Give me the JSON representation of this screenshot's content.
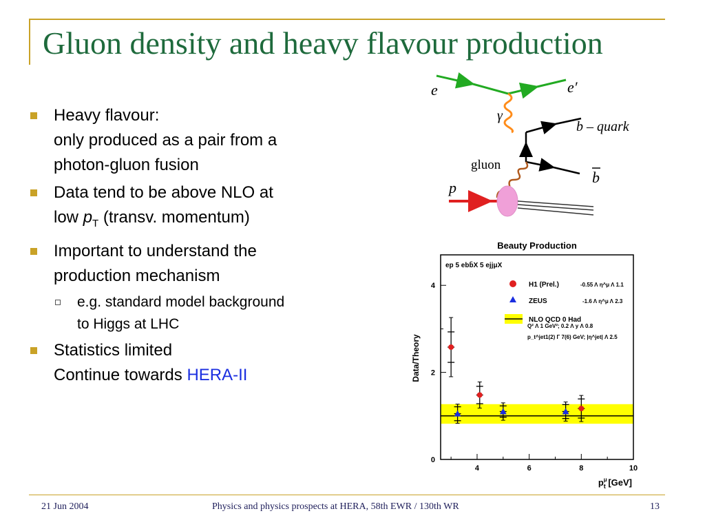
{
  "slide": {
    "title": "Gluon density and heavy flavour production",
    "bullets": {
      "b1_line1": "Heavy flavour:",
      "b1_line2": "only produced as a pair from a",
      "b1_line3": "photon-gluon fusion",
      "b2_line1": "Data tend to be above NLO at",
      "b2_line2_pre": "low ",
      "b2_p": "p",
      "b2_sub": "T",
      "b2_line2_post": " (transv. momentum)",
      "b3_line1": "Important to understand the",
      "b3_line2": "production mechanism",
      "b3_sub_line1": "e.g. standard model background",
      "b3_sub_line2": "to Higgs at LHC",
      "b4_line1": "Statistics limited",
      "b4_line2_pre": "Continue towards ",
      "b4_highlight": "HERA-II"
    },
    "diagram": {
      "e": "e",
      "e_prime": "e′",
      "gamma": "γ",
      "b_quark": "b – quark",
      "gluon": "gluon",
      "b_bar": "b",
      "p": "p"
    },
    "footer": {
      "date": "21 Jun 2004",
      "center": "Physics and physics prospects at HERA, 58th EWR / 130th WR",
      "page": "13"
    }
  },
  "chart_data": {
    "type": "scatter",
    "title": "Beauty Production",
    "process": "ep 5 ebb̄X 5 ejjμX",
    "xlabel": "p",
    "xlabel_sup": "μ",
    "xlabel_sub": "t",
    "xlabel_unit": " [GeV]",
    "ylabel": "Data/Theory",
    "xlim": [
      2.6,
      10
    ],
    "ylim": [
      0,
      4.7
    ],
    "xticks": [
      4,
      6,
      8,
      10
    ],
    "yticks": [
      0,
      2,
      4
    ],
    "cuts_line1": "Q² Λ 1 GeV²;     0.2 Λ y Λ 0.8",
    "cuts_line2": "p_t^jet1(2) Γ 7(6) GeV;  |η^jet| Λ 2.5",
    "band": {
      "label": "NLO QCD 0 Had",
      "low": 0.82,
      "high": 1.27,
      "central": 1.0,
      "color": "#ffff00"
    },
    "series": [
      {
        "name": "H1 (Prel.)",
        "range_label": "-0.55 Λ η^μ Λ 1.1",
        "color": "#e02020",
        "marker": "circle",
        "points": [
          {
            "x": 3.0,
            "y": 2.58,
            "stat": 0.35,
            "tot": 0.68
          },
          {
            "x": 4.1,
            "y": 1.48,
            "stat": 0.2,
            "tot": 0.3
          },
          {
            "x": 8.0,
            "y": 1.17,
            "stat": 0.22,
            "tot": 0.3
          }
        ]
      },
      {
        "name": "ZEUS",
        "range_label": "-1.6 Λ η^μ Λ 2.3",
        "color": "#1a2ee0",
        "marker": "triangle",
        "points": [
          {
            "x": 3.25,
            "y": 1.05,
            "stat": 0.16,
            "tot": 0.22
          },
          {
            "x": 5.0,
            "y": 1.1,
            "stat": 0.13,
            "tot": 0.2
          },
          {
            "x": 7.4,
            "y": 1.1,
            "stat": 0.16,
            "tot": 0.22
          }
        ]
      }
    ]
  }
}
